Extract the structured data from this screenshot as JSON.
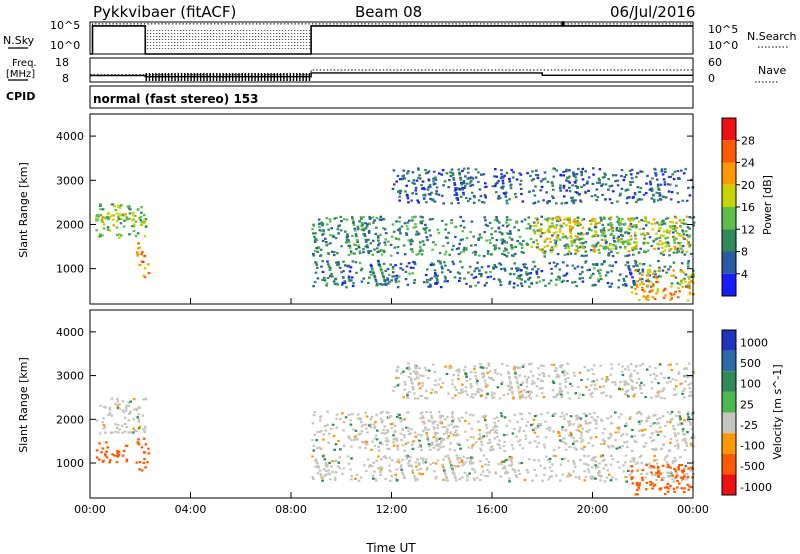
{
  "header": {
    "station": "Pykkvibaer (fitACF)",
    "beam": "Beam 08",
    "date": "06/Jul/2016"
  },
  "params_panel": {
    "nsky_label": "N.Sky",
    "nsearch_label": "N.Search",
    "freq_label_line1": "Freq.",
    "freq_label_line2": "[MHz]",
    "nave_label": "Nave",
    "cpid_label": "CPID",
    "cpid_value": "normal (fast stereo) 153",
    "noise_left_ticks": [
      "10^5",
      "10^0"
    ],
    "noise_right_ticks": [
      "10^5",
      "10^0"
    ],
    "freq_ticks": [
      "18",
      "8"
    ],
    "nave_ticks": [
      "60",
      "0"
    ]
  },
  "colors": {
    "power_scale": [
      "#1a1aff",
      "#2a5aa0",
      "#2e8b57",
      "#5bbf4a",
      "#c8d400",
      "#ff9900",
      "#ff5a00",
      "#ee1111"
    ],
    "velocity_scale": [
      "#2233bb",
      "#2d6aa8",
      "#2e8b57",
      "#4db84d",
      "#c6c6c0",
      "#ff9900",
      "#ff5a00",
      "#ee1111"
    ],
    "ground_scatter": "#c0c0b8"
  },
  "chart_data": [
    {
      "type": "line",
      "title": "N.Sky / N.Search",
      "xlabel": "Time UT",
      "ylabel": "N.Sky",
      "log_scale": true,
      "ylim": [
        1,
        100000
      ],
      "series": [
        {
          "name": "N.Sky",
          "x": [
            0.0,
            0.1,
            0.1,
            2.2,
            2.2,
            8.8,
            8.8,
            18.8,
            18.8,
            18.85,
            18.85,
            24.0
          ],
          "y": [
            1,
            1,
            25000,
            25000,
            1,
            1,
            25000,
            25000,
            100000,
            100000,
            25000,
            25000
          ]
        },
        {
          "name": "N.Search",
          "x": [
            0.0,
            0.1,
            0.1,
            2.2,
            2.2,
            8.8,
            8.8,
            24.0
          ],
          "y": [
            1,
            1,
            50000,
            50000,
            50000,
            50000,
            50000,
            50000
          ]
        }
      ]
    },
    {
      "type": "line",
      "title": "Freq / Nave",
      "xlabel": "Time UT",
      "ylabel": "Freq. [MHz]",
      "ylim": [
        8,
        18
      ],
      "y2lim": [
        0,
        60
      ],
      "series": [
        {
          "name": "Freq.",
          "x": [
            0.0,
            2.2,
            2.2,
            8.8,
            8.8,
            18.0,
            18.0,
            24.0
          ],
          "y": [
            10.7,
            10.7,
            10.2,
            10.2,
            11.8,
            11.8,
            10.8,
            10.8
          ]
        },
        {
          "name": "Nave",
          "x": [
            0.0,
            2.2,
            2.2,
            8.8,
            8.8,
            24.0
          ],
          "y": [
            18,
            18,
            18,
            18,
            30,
            30
          ]
        }
      ]
    },
    {
      "type": "heatmap",
      "title": "Power",
      "xlabel": "Time UT",
      "ylabel": "Slant Range [km]",
      "xlim": [
        0,
        24
      ],
      "ylim": [
        200,
        4500
      ],
      "x_ticks": [
        "00:00",
        "04:00",
        "08:00",
        "12:00",
        "16:00",
        "20:00",
        "00:00"
      ],
      "y_ticks": [
        1000,
        2000,
        3000,
        4000
      ],
      "colorbar_label": "Power [dB]",
      "colorbar_ticks": [
        "28",
        "24",
        "20",
        "16",
        "12",
        "8",
        "4"
      ],
      "regions": [
        {
          "x": [
            0.2,
            2.2
          ],
          "y": [
            1700,
            2500
          ],
          "value": 14
        },
        {
          "x": [
            0.2,
            2.2
          ],
          "y": [
            2000,
            2300
          ],
          "value": 18
        },
        {
          "x": [
            1.8,
            2.3
          ],
          "y": [
            800,
            1600
          ],
          "value": 24
        },
        {
          "x": [
            8.8,
            24.0
          ],
          "y": [
            1300,
            2200
          ],
          "value": 10
        },
        {
          "x": [
            8.8,
            24.0
          ],
          "y": [
            600,
            1200
          ],
          "value": 8
        },
        {
          "x": [
            12.0,
            24.0
          ],
          "y": [
            2500,
            3300
          ],
          "value": 7
        },
        {
          "x": [
            17.5,
            23.8
          ],
          "y": [
            1400,
            2200
          ],
          "value": 18
        },
        {
          "x": [
            21.5,
            24.0
          ],
          "y": [
            300,
            1000
          ],
          "value": 22
        }
      ]
    },
    {
      "type": "heatmap",
      "title": "Velocity",
      "xlabel": "Time UT",
      "ylabel": "Slant Range [km]",
      "xlim": [
        0,
        24
      ],
      "ylim": [
        200,
        4500
      ],
      "x_ticks": [
        "00:00",
        "04:00",
        "08:00",
        "12:00",
        "16:00",
        "20:00",
        "00:00"
      ],
      "y_ticks": [
        1000,
        2000,
        3000,
        4000
      ],
      "x_axis_label": "Time UT",
      "colorbar_label": "Velocity [m s^-1]",
      "colorbar_ticks": [
        "1000",
        "500",
        "100",
        "25",
        "-25",
        "-100",
        "-500",
        "-1000"
      ],
      "regions": [
        {
          "x": [
            0.2,
            2.2
          ],
          "y": [
            1700,
            2500
          ],
          "value": 0
        },
        {
          "x": [
            0.2,
            1.5
          ],
          "y": [
            1000,
            1500
          ],
          "value": -300
        },
        {
          "x": [
            1.8,
            2.3
          ],
          "y": [
            800,
            1600
          ],
          "value": -400
        },
        {
          "x": [
            8.8,
            24.0
          ],
          "y": [
            1300,
            2200
          ],
          "value": 0
        },
        {
          "x": [
            8.8,
            24.0
          ],
          "y": [
            600,
            1200
          ],
          "value": 0
        },
        {
          "x": [
            12.0,
            24.0
          ],
          "y": [
            2500,
            3300
          ],
          "value": 0
        },
        {
          "x": [
            21.5,
            24.0
          ],
          "y": [
            300,
            1000
          ],
          "value": -150
        }
      ]
    }
  ],
  "time_axis_label": "Time UT"
}
